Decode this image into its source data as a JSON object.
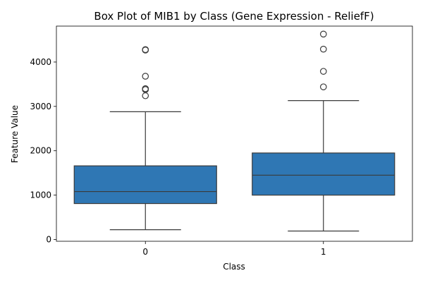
{
  "chart_data": {
    "type": "box",
    "title": "Box Plot of MIB1 by Class (Gene Expression - ReliefF)",
    "xlabel": "Class",
    "ylabel": "Feature Value",
    "ylim": [
      -40,
      4810
    ],
    "yticks": [
      0,
      1000,
      2000,
      3000,
      4000
    ],
    "ytick_labels": [
      "0",
      "1000",
      "2000",
      "3000",
      "4000"
    ],
    "grid": false,
    "legend": "none",
    "colors": {
      "box_fill": "#2f77b4",
      "line": "#3a3a3a",
      "frame": "#000000"
    },
    "categories": [
      "0",
      "1"
    ],
    "boxes": [
      {
        "category": "0",
        "whisker_low": 220,
        "q1": 810,
        "median": 1080,
        "q3": 1660,
        "whisker_high": 2880,
        "outliers": [
          3240,
          3380,
          3400,
          3680,
          4270,
          4280
        ]
      },
      {
        "category": "1",
        "whisker_low": 190,
        "q1": 1000,
        "median": 1450,
        "q3": 1950,
        "whisker_high": 3130,
        "outliers": [
          3440,
          3790,
          4290,
          4630
        ]
      }
    ]
  }
}
